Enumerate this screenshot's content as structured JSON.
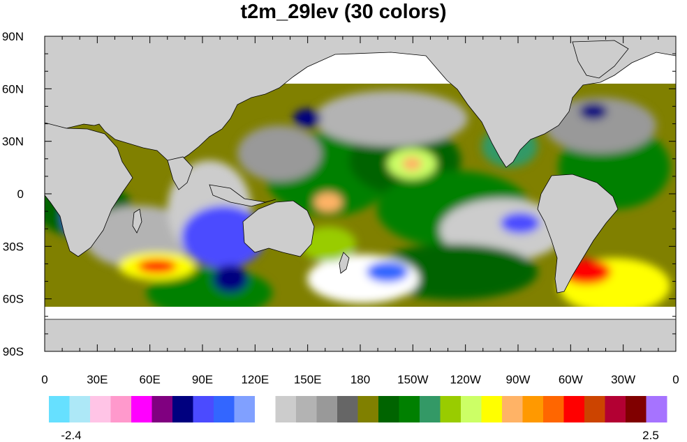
{
  "title": "t2m_29lev (30 colors)",
  "map": {
    "land_color": "#cdcdcd",
    "coast_color": "#000000",
    "lat_labels": [
      "90N",
      "60N",
      "30N",
      "0",
      "30S",
      "60S",
      "90S"
    ],
    "lat_values": [
      90,
      60,
      30,
      0,
      -30,
      -60,
      -90
    ],
    "lon_labels": [
      "0",
      "30E",
      "60E",
      "90E",
      "120E",
      "150E",
      "180",
      "150W",
      "120W",
      "90W",
      "60W",
      "30W",
      "0"
    ],
    "lon_values": [
      0,
      30,
      60,
      90,
      120,
      150,
      180,
      210,
      240,
      270,
      300,
      330,
      360
    ]
  },
  "colorbar": {
    "min_label": "-2.4",
    "max_label": "2.5",
    "colors": [
      "#66e0ff",
      "#ade8f7",
      "#ffc4e6",
      "#ff99cc",
      "#ff00ff",
      "#800080",
      "#00007f",
      "#4b4bff",
      "#3366ff",
      "#80a0ff",
      "#ffffff",
      "#cccccc",
      "#b3b3b3",
      "#999999",
      "#666666",
      "#808000",
      "#006400",
      "#008000",
      "#339966",
      "#99cc00",
      "#ccff66",
      "#ffff00",
      "#ffb366",
      "#ff9900",
      "#ff6600",
      "#ff0000",
      "#cc4400",
      "#b30033",
      "#800000",
      "#a673ff"
    ]
  }
}
